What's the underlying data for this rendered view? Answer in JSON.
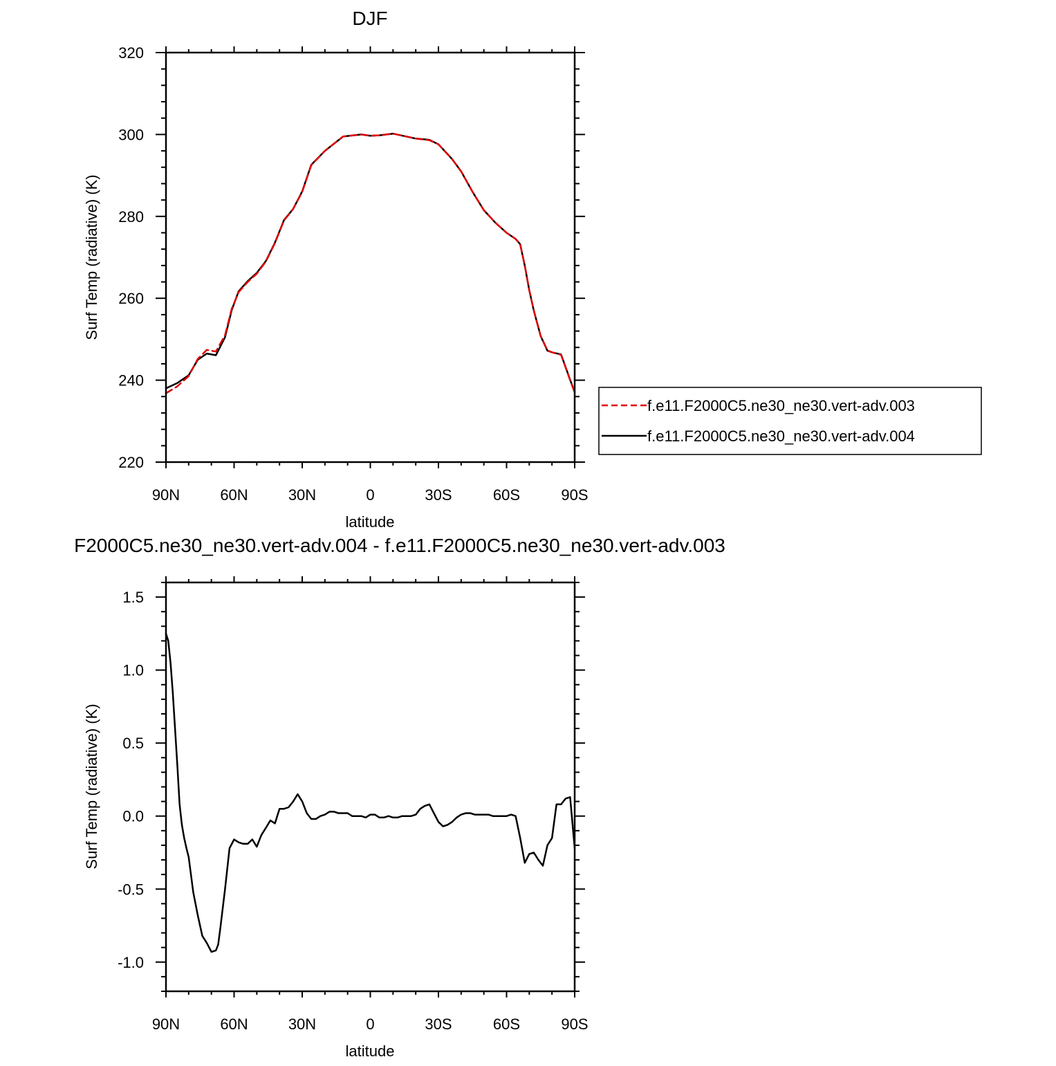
{
  "chart_data": [
    {
      "type": "line",
      "title": "DJF",
      "xlabel": "latitude",
      "ylabel": "Surf Temp (radiative) (K)",
      "xlim": [
        -90,
        90
      ],
      "ylim": [
        220,
        320
      ],
      "x_ticks": [
        -90,
        -60,
        -30,
        0,
        30,
        60,
        90
      ],
      "x_tick_labels": [
        "90N",
        "60N",
        "30N",
        "0",
        "30S",
        "60S",
        "90S"
      ],
      "y_ticks": [
        220,
        240,
        260,
        280,
        300,
        320
      ],
      "y_tick_labels": [
        "220",
        "240",
        "260",
        "280",
        "300",
        "320"
      ],
      "legend": {
        "placement": "right",
        "entries": [
          {
            "label": "f.e11.F2000C5.ne30_ne30.vert-adv.003",
            "color": "#e00000",
            "dash": "dashed"
          },
          {
            "label": "f.e11.F2000C5.ne30_ne30.vert-adv.004",
            "color": "#000000",
            "dash": "solid"
          }
        ]
      },
      "series": [
        {
          "name": "f.e11.F2000C5.ne30_ne30.vert-adv.003",
          "color": "#e00000",
          "dash": "dashed",
          "x": [
            -90,
            -85,
            -80,
            -76,
            -72,
            -68,
            -64,
            -61,
            -58,
            -54,
            -50,
            -46,
            -42,
            -38,
            -34,
            -30,
            -26,
            -20,
            -12,
            -4,
            0,
            4,
            10,
            20,
            26,
            30,
            36,
            40,
            45,
            50,
            55,
            60,
            64,
            66,
            68,
            70,
            72,
            75,
            78,
            80,
            84,
            88,
            90
          ],
          "y": [
            236.8,
            238.5,
            241,
            245.2,
            247.4,
            247.0,
            251,
            257.5,
            261.5,
            264,
            266,
            269,
            273.5,
            279,
            281.8,
            286,
            292.5,
            296,
            299.5,
            300,
            299.7,
            299.8,
            300.2,
            299,
            298.6,
            297.6,
            294,
            291,
            286,
            281.5,
            278.5,
            276,
            274.5,
            273.2,
            268,
            262,
            257,
            250.8,
            247.3,
            246.8,
            246.2,
            240,
            237
          ]
        },
        {
          "name": "f.e11.F2000C5.ne30_ne30.vert-adv.004",
          "color": "#000000",
          "dash": "solid",
          "x": [
            -90,
            -85,
            -80,
            -76,
            -72,
            -68,
            -64,
            -61,
            -58,
            -54,
            -50,
            -46,
            -42,
            -38,
            -34,
            -30,
            -26,
            -20,
            -12,
            -4,
            0,
            4,
            10,
            20,
            26,
            30,
            36,
            40,
            45,
            50,
            55,
            60,
            64,
            66,
            68,
            70,
            72,
            75,
            78,
            80,
            84,
            88,
            90
          ],
          "y": [
            238,
            239.3,
            241.2,
            245.0,
            246.5,
            246.1,
            250.5,
            257.2,
            261.7,
            264.2,
            266.2,
            269.1,
            273.6,
            279.1,
            281.8,
            286.1,
            292.6,
            296.0,
            299.5,
            300,
            299.7,
            299.8,
            300.2,
            299.0,
            298.7,
            297.6,
            294,
            291,
            286,
            281.5,
            278.5,
            276,
            274.5,
            273.2,
            268,
            262,
            257,
            250.8,
            247.2,
            246.8,
            246.3,
            240.1,
            237.1
          ]
        }
      ]
    },
    {
      "type": "line",
      "title": "F2000C5.ne30_ne30.vert-adv.004 - f.e11.F2000C5.ne30_ne30.vert-adv.003",
      "xlabel": "latitude",
      "ylabel": "Surf Temp (radiative) (K)",
      "xlim": [
        -90,
        90
      ],
      "ylim": [
        -1.2,
        1.6
      ],
      "x_ticks": [
        -90,
        -60,
        -30,
        0,
        30,
        60,
        90
      ],
      "x_tick_labels": [
        "90N",
        "60N",
        "30N",
        "0",
        "30S",
        "60S",
        "90S"
      ],
      "y_ticks": [
        -1.0,
        -0.5,
        0.0,
        0.5,
        1.0,
        1.5
      ],
      "y_tick_labels": [
        "-1.0",
        "-0.5",
        "0.0",
        "0.5",
        "1.0",
        "1.5"
      ],
      "series": [
        {
          "color": "#000000",
          "dash": "solid",
          "x": [
            -90,
            -89,
            -88,
            -87,
            -86,
            -85,
            -84,
            -83,
            -82,
            -81,
            -80,
            -79,
            -78,
            -76,
            -74,
            -72,
            -70,
            -68,
            -67,
            -66,
            -64,
            -62,
            -60,
            -58,
            -56,
            -54,
            -52,
            -50,
            -48,
            -46,
            -44,
            -42,
            -40,
            -38,
            -36,
            -34,
            -32,
            -30,
            -28,
            -26,
            -24,
            -22,
            -20,
            -18,
            -16,
            -14,
            -12,
            -10,
            -8,
            -6,
            -4,
            -2,
            0,
            2,
            4,
            6,
            8,
            10,
            12,
            14,
            16,
            18,
            20,
            22,
            24,
            26,
            28,
            30,
            32,
            34,
            36,
            38,
            40,
            42,
            44,
            46,
            48,
            50,
            52,
            54,
            56,
            58,
            60,
            62,
            64,
            66,
            68,
            70,
            72,
            74,
            76,
            78,
            80,
            82,
            84,
            86,
            88,
            90
          ],
          "y": [
            1.25,
            1.2,
            1.05,
            0.85,
            0.6,
            0.35,
            0.08,
            -0.06,
            -0.15,
            -0.22,
            -0.28,
            -0.4,
            -0.52,
            -0.68,
            -0.82,
            -0.87,
            -0.93,
            -0.92,
            -0.88,
            -0.76,
            -0.5,
            -0.22,
            -0.16,
            -0.18,
            -0.19,
            -0.19,
            -0.16,
            -0.21,
            -0.13,
            -0.08,
            -0.03,
            -0.05,
            0.05,
            0.05,
            0.06,
            0.1,
            0.15,
            0.1,
            0.02,
            -0.02,
            -0.02,
            0.0,
            0.01,
            0.03,
            0.03,
            0.02,
            0.02,
            0.02,
            0.0,
            0.0,
            0.0,
            -0.01,
            0.01,
            0.01,
            -0.01,
            -0.01,
            0.0,
            -0.01,
            -0.01,
            0.0,
            0.0,
            0.0,
            0.01,
            0.05,
            0.07,
            0.08,
            0.02,
            -0.04,
            -0.07,
            -0.06,
            -0.04,
            -0.01,
            0.01,
            0.02,
            0.02,
            0.01,
            0.01,
            0.01,
            0.01,
            0.0,
            0.0,
            0.0,
            0.0,
            0.01,
            0.0,
            -0.15,
            -0.32,
            -0.26,
            -0.25,
            -0.3,
            -0.34,
            -0.2,
            -0.15,
            0.08,
            0.08,
            0.12,
            0.13,
            -0.22
          ]
        }
      ]
    }
  ]
}
